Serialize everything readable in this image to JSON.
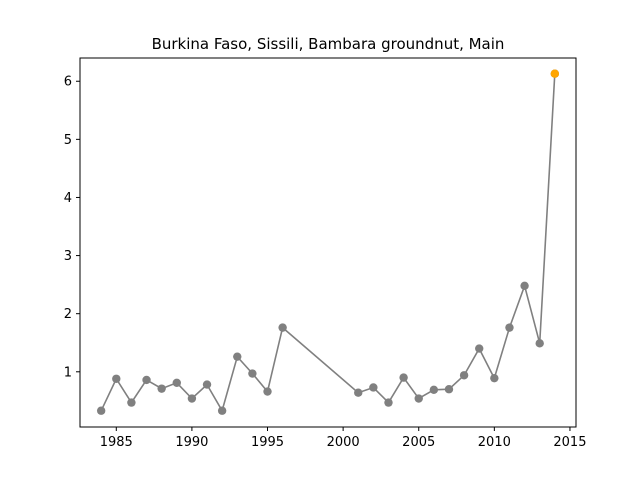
{
  "chart_data": {
    "type": "line",
    "title": "Burkina Faso, Sissili, Bambara groundnut, Main",
    "xlabel": "",
    "ylabel": "",
    "xlim": [
      1982.6,
      2015.4
    ],
    "ylim": [
      0.05,
      6.4
    ],
    "xticks": [
      1985,
      1990,
      1995,
      2000,
      2005,
      2010,
      2015
    ],
    "xtick_labels": [
      "1985",
      "1990",
      "1995",
      "2000",
      "2005",
      "2010",
      "2015"
    ],
    "yticks": [
      1,
      2,
      3,
      4,
      5,
      6
    ],
    "ytick_labels": [
      "1",
      "2",
      "3",
      "4",
      "5",
      "6"
    ],
    "grid": false,
    "series": [
      {
        "color": "#808080",
        "points": [
          {
            "x": 1984,
            "y": 0.33
          },
          {
            "x": 1985,
            "y": 0.88
          },
          {
            "x": 1986,
            "y": 0.47
          },
          {
            "x": 1987,
            "y": 0.86
          },
          {
            "x": 1988,
            "y": 0.71
          },
          {
            "x": 1989,
            "y": 0.81
          },
          {
            "x": 1990,
            "y": 0.54
          },
          {
            "x": 1991,
            "y": 0.78
          },
          {
            "x": 1992,
            "y": 0.33
          },
          {
            "x": 1993,
            "y": 1.26
          },
          {
            "x": 1994,
            "y": 0.97
          },
          {
            "x": 1995,
            "y": 0.66
          },
          {
            "x": 1996,
            "y": 1.76
          },
          {
            "x": 2001,
            "y": 0.64
          },
          {
            "x": 2002,
            "y": 0.73
          },
          {
            "x": 2003,
            "y": 0.47
          },
          {
            "x": 2004,
            "y": 0.9
          },
          {
            "x": 2005,
            "y": 0.54
          },
          {
            "x": 2006,
            "y": 0.69
          },
          {
            "x": 2007,
            "y": 0.7
          },
          {
            "x": 2008,
            "y": 0.94
          },
          {
            "x": 2009,
            "y": 1.4
          },
          {
            "x": 2010,
            "y": 0.89
          },
          {
            "x": 2011,
            "y": 1.76
          },
          {
            "x": 2012,
            "y": 2.48
          },
          {
            "x": 2013,
            "y": 1.49
          },
          {
            "x": 2014,
            "y": 6.13
          }
        ]
      }
    ],
    "highlight": {
      "x": 2014,
      "y": 6.13,
      "color": "#ffa500"
    }
  }
}
